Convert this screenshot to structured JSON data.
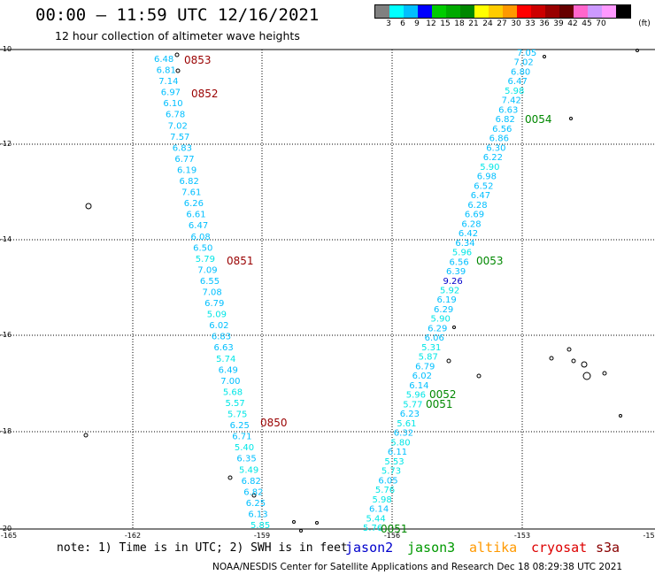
{
  "header": {
    "title": "00:00 – 11:59 UTC 12/16/2021",
    "subtitle": "12 hour collection of altimeter wave heights"
  },
  "legend": {
    "unit": "(ft)",
    "colors": [
      "#808080",
      "#00ffff",
      "#00bfff",
      "#0000ff",
      "#00cc00",
      "#00aa00",
      "#008800",
      "#ffff00",
      "#ffcc00",
      "#ff9900",
      "#ff0000",
      "#cc0000",
      "#990000",
      "#660000",
      "#ff66cc",
      "#cc99ff",
      "#ff99ff",
      "#000000"
    ],
    "ticks": [
      "3",
      "6",
      "9",
      "12",
      "15",
      "18",
      "21",
      "24",
      "27",
      "30",
      "33",
      "36",
      "39",
      "42",
      "45",
      "70"
    ]
  },
  "map": {
    "lon_ticks": [
      "-165",
      "-162",
      "-159",
      "-156",
      "-153",
      "-15"
    ],
    "lat_ticks": [
      "-10",
      "-12",
      "-14",
      "-16",
      "-18",
      "-20"
    ],
    "track_west_values": [
      "6.48",
      "6.81",
      "7.14",
      "6.97",
      "6.10",
      "6.78",
      "7.02",
      "7.57",
      "6.83",
      "6.77",
      "6.19",
      "6.82",
      "7.61",
      "6.26",
      "6.61",
      "6.47",
      "6.08",
      "6.50",
      "5.79",
      "7.09",
      "6.55",
      "7.08",
      "6.79",
      "5.09",
      "6.02",
      "6.83",
      "6.63",
      "5.74",
      "6.49",
      "7.00",
      "5.68",
      "5.57",
      "5.75",
      "6.25",
      "6.71",
      "5.40",
      "6.35",
      "5.49",
      "6.82",
      "6.82",
      "6.25",
      "6.13",
      "5.85"
    ],
    "track_east_values": [
      "7.05",
      "7.02",
      "6.80",
      "6.47",
      "5.98",
      "7.42",
      "6.63",
      "6.82",
      "6.56",
      "6.86",
      "6.30",
      "6.22",
      "5.90",
      "6.98",
      "6.52",
      "6.47",
      "6.28",
      "6.69",
      "6.28",
      "6.42",
      "6.34",
      "5.96",
      "6.56",
      "6.39",
      "9.26",
      "5.92",
      "6.19",
      "6.29",
      "5.90",
      "6.29",
      "6.06",
      "5.31",
      "5.87",
      "6.79",
      "6.02",
      "6.14",
      "5.96",
      "5.77",
      "6.23",
      "5.61",
      "6.32",
      "5.80",
      "6.11",
      "5.53",
      "5.73",
      "6.05",
      "5.76",
      "5.98",
      "6.14",
      "5.44",
      "5.76"
    ],
    "time_labels_west": [
      "0853",
      "0852",
      "0851",
      "0850"
    ],
    "time_labels_east": [
      "0054",
      "0053",
      "0052",
      "0051",
      "0051"
    ]
  },
  "note": "note: 1) Time is in UTC; 2) SWH is in feet",
  "satellites": [
    {
      "name": "jason2",
      "color": "#0000cc"
    },
    {
      "name": "jason3",
      "color": "#009900"
    },
    {
      "name": "altika",
      "color": "#ff9900"
    },
    {
      "name": "cryosat",
      "color": "#dd0000"
    },
    {
      "name": "s3a",
      "color": "#880000"
    }
  ],
  "footer": "NOAA/NESDIS Center for Satellite Applications and Research   Dec 18 08:29:38 UTC 2021"
}
